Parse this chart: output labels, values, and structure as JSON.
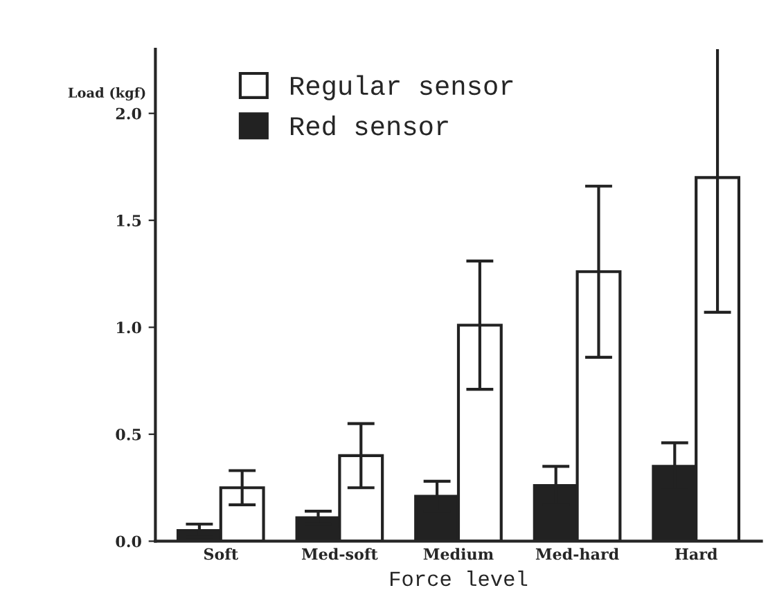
{
  "chart_data": {
    "type": "bar",
    "xlabel": "Force level",
    "ylabel": "Load (kgf)",
    "categories": [
      "Soft",
      "Med-soft",
      "Medium",
      "Med-hard",
      "Hard"
    ],
    "series": [
      {
        "name": "Red sensor",
        "color": "#222222",
        "values": [
          0.05,
          0.11,
          0.21,
          0.26,
          0.35
        ],
        "errors": [
          0.03,
          0.03,
          0.07,
          0.09,
          0.11
        ]
      },
      {
        "name": "Regular sensor",
        "color": "#ffffff",
        "values": [
          0.25,
          0.4,
          1.01,
          1.26,
          1.7
        ],
        "errors": [
          0.08,
          0.15,
          0.3,
          0.4,
          0.63
        ]
      }
    ],
    "ylim": [
      0,
      2.3
    ],
    "yticks": [
      {
        "value": 0,
        "label": "0.0"
      },
      {
        "value": 0.5,
        "label": "0.5"
      },
      {
        "value": 1.0,
        "label": "1.0"
      },
      {
        "value": 1.5,
        "label": "1.5"
      },
      {
        "value": 2.0,
        "label": "2.0"
      }
    ],
    "legend": "top left",
    "grid": false
  }
}
